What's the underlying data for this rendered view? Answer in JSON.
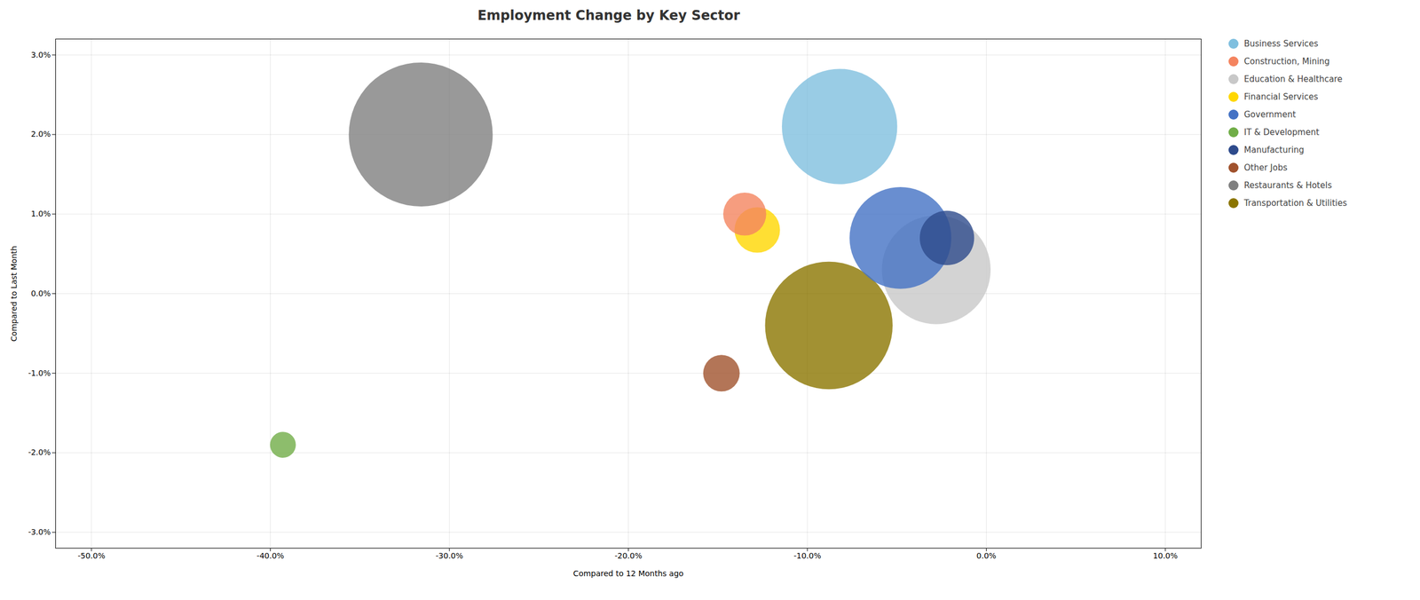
{
  "chart_data": {
    "type": "scatter",
    "title": "Employment Change by Key Sector",
    "xlabel": "Compared to 12 Months ago",
    "ylabel": "Compared to Last Month",
    "xlim": [
      -0.52,
      0.12
    ],
    "ylim": [
      -0.032,
      0.032
    ],
    "xticks": [
      {
        "value": -0.5,
        "label": "-50.0%"
      },
      {
        "value": -0.4,
        "label": "-40.0%"
      },
      {
        "value": -0.3,
        "label": "-30.0%"
      },
      {
        "value": -0.2,
        "label": "-20.0%"
      },
      {
        "value": -0.1,
        "label": "-10.0%"
      },
      {
        "value": 0.0,
        "label": "0.0%"
      },
      {
        "value": 0.1,
        "label": "10.0%"
      }
    ],
    "yticks": [
      {
        "value": -0.03,
        "label": "-3.0%"
      },
      {
        "value": -0.02,
        "label": "-2.0%"
      },
      {
        "value": -0.01,
        "label": "-1.0%"
      },
      {
        "value": 0.0,
        "label": "0.0%"
      },
      {
        "value": 0.01,
        "label": "1.0%"
      },
      {
        "value": 0.02,
        "label": "2.0%"
      },
      {
        "value": 0.03,
        "label": "3.0%"
      }
    ],
    "grid": true,
    "legend": "right",
    "series": [
      {
        "name": "Business Services",
        "color": "#7fbfdf",
        "x": [
          -0.082
        ],
        "y": [
          0.021
        ],
        "size": [
          18000
        ]
      },
      {
        "name": "Construction, Mining",
        "color": "#f4845f",
        "x": [
          -0.135
        ],
        "y": [
          0.01
        ],
        "size": [
          2500
        ]
      },
      {
        "name": "Education & Healthcare",
        "color": "#c8c8c8",
        "x": [
          -0.028
        ],
        "y": [
          0.003
        ],
        "size": [
          16000
        ]
      },
      {
        "name": "Financial Services",
        "color": "#ffd700",
        "x": [
          -0.128
        ],
        "y": [
          0.008
        ],
        "size": [
          2800
        ]
      },
      {
        "name": "Government",
        "color": "#4472c4",
        "x": [
          -0.048
        ],
        "y": [
          0.007
        ],
        "size": [
          14000
        ]
      },
      {
        "name": "IT & Development",
        "color": "#70ad47",
        "x": [
          -0.393
        ],
        "y": [
          -0.019
        ],
        "size": [
          900
        ]
      },
      {
        "name": "Manufacturing",
        "color": "#2e4b8c",
        "x": [
          -0.022
        ],
        "y": [
          0.007
        ],
        "size": [
          4000
        ]
      },
      {
        "name": "Other Jobs",
        "color": "#a0522d",
        "x": [
          -0.148
        ],
        "y": [
          -0.01
        ],
        "size": [
          1800
        ]
      },
      {
        "name": "Restaurants & Hotels",
        "color": "#808080",
        "x": [
          -0.316
        ],
        "y": [
          0.02
        ],
        "size": [
          28000
        ]
      },
      {
        "name": "Transportation & Utilities",
        "color": "#8b7500",
        "x": [
          -0.088
        ],
        "y": [
          -0.004
        ],
        "size": [
          22000
        ]
      }
    ]
  }
}
